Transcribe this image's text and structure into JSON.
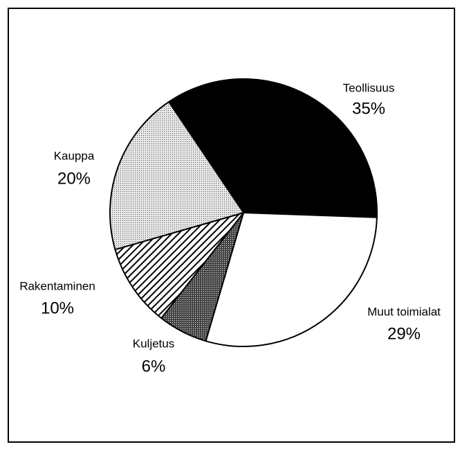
{
  "chart_data": {
    "type": "pie",
    "categories": [
      "Teollisuus",
      "Muut toimialat",
      "Kuljetus",
      "Rakentaminen",
      "Kauppa"
    ],
    "values": [
      35,
      29,
      6,
      10,
      20
    ],
    "value_labels": [
      "35%",
      "29%",
      "6%",
      "10%",
      "20%"
    ]
  }
}
